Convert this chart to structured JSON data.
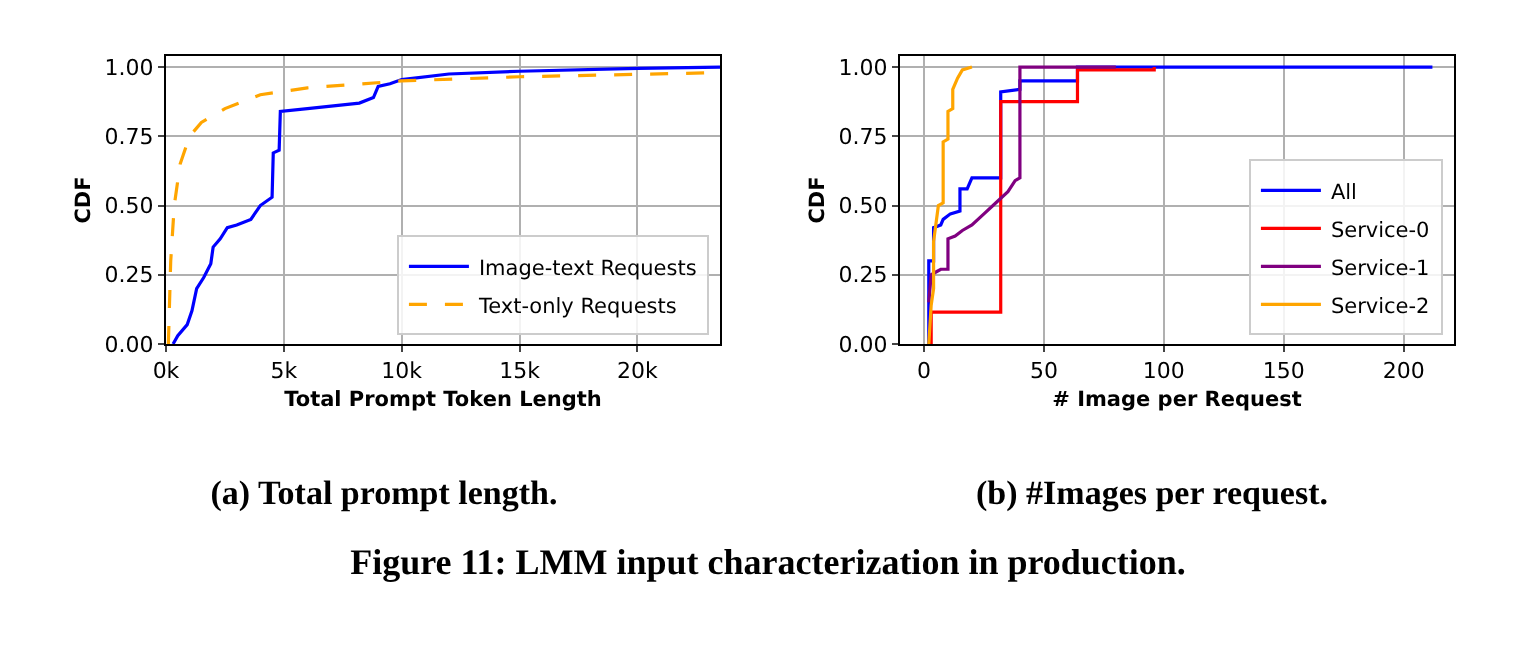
{
  "chart_data": [
    {
      "type": "line",
      "subtitle": "(a) Total prompt length.",
      "xlabel": "Total Prompt Token Length",
      "ylabel": "CDF",
      "annotations": [
        "Figure 11: LMM input characterization in production."
      ],
      "xlim": [
        0,
        23500
      ],
      "xticks": [
        {
          "value": 0,
          "label": "0k"
        },
        {
          "value": 5000,
          "label": "5k"
        },
        {
          "value": 10000,
          "label": "10k"
        },
        {
          "value": 15000,
          "label": "15k"
        },
        {
          "value": 20000,
          "label": "20k"
        }
      ],
      "ylim": [
        0,
        1.04
      ],
      "yticks": [
        {
          "value": 0,
          "label": "0.00"
        },
        {
          "value": 0.25,
          "label": "0.25"
        },
        {
          "value": 0.5,
          "label": "0.50"
        },
        {
          "value": 0.75,
          "label": "0.75"
        },
        {
          "value": 1,
          "label": "1.00"
        }
      ],
      "grid": true,
      "legend": "bottom right",
      "series": [
        {
          "name": "Image-text Requests",
          "color": "#0000ff",
          "line_style": "solid",
          "x": [
            300,
            500,
            900,
            1100,
            1300,
            1600,
            1900,
            2000,
            2300,
            2600,
            3000,
            3600,
            4000,
            4500,
            4550,
            4800,
            4850,
            6000,
            8200,
            8800,
            9000,
            9500,
            10000,
            12000,
            15000,
            20000,
            23500
          ],
          "values": [
            0,
            0.03,
            0.07,
            0.12,
            0.2,
            0.24,
            0.29,
            0.35,
            0.38,
            0.42,
            0.43,
            0.45,
            0.5,
            0.53,
            0.69,
            0.7,
            0.84,
            0.85,
            0.87,
            0.89,
            0.93,
            0.94,
            0.955,
            0.975,
            0.985,
            0.995,
            1.0
          ]
        },
        {
          "name": "Text-only Requests",
          "color": "#ffa500",
          "line_style": "dashed",
          "x": [
            100,
            200,
            350,
            600,
            1000,
            1500,
            2500,
            4000,
            6000,
            10000,
            15000,
            23500
          ],
          "values": [
            0,
            0.3,
            0.5,
            0.65,
            0.75,
            0.8,
            0.85,
            0.9,
            0.925,
            0.95,
            0.965,
            0.98
          ]
        }
      ]
    },
    {
      "type": "line",
      "subtitle": "(b) #Images per request.",
      "xlabel": "# Image per Request",
      "ylabel": "CDF",
      "xlim": [
        -10,
        221
      ],
      "xticks": [
        0,
        50,
        100,
        150,
        200
      ],
      "ylim": [
        0,
        1.04
      ],
      "yticks": [
        {
          "value": 0,
          "label": "0.00"
        },
        {
          "value": 0.25,
          "label": "0.25"
        },
        {
          "value": 0.5,
          "label": "0.50"
        },
        {
          "value": 0.75,
          "label": "0.75"
        },
        {
          "value": 1,
          "label": "1.00"
        }
      ],
      "grid": true,
      "legend": "bottom right",
      "series": [
        {
          "name": "All",
          "color": "#0000ff",
          "line_style": "solid",
          "x": [
            2,
            2,
            4,
            4,
            7,
            8,
            11,
            15,
            15,
            18,
            19,
            20,
            32,
            32,
            40,
            40,
            64,
            64,
            212
          ],
          "values": [
            0,
            0.3,
            0.3,
            0.42,
            0.43,
            0.45,
            0.47,
            0.48,
            0.56,
            0.56,
            0.58,
            0.6,
            0.6,
            0.91,
            0.92,
            0.95,
            0.95,
            1.0,
            1.0
          ]
        },
        {
          "name": "Service-0",
          "color": "#ff0000",
          "line_style": "solid",
          "x": [
            3,
            3,
            32,
            32,
            64,
            64,
            96,
            96
          ],
          "values": [
            0,
            0.115,
            0.115,
            0.875,
            0.875,
            0.99,
            0.99,
            1.0
          ]
        },
        {
          "name": "Service-1",
          "color": "#800080",
          "line_style": "solid",
          "x": [
            2,
            3,
            5,
            7,
            10,
            10,
            13,
            16,
            20,
            25,
            30,
            35,
            38,
            40,
            40,
            80
          ],
          "values": [
            0.15,
            0.25,
            0.26,
            0.27,
            0.27,
            0.38,
            0.39,
            0.41,
            0.43,
            0.47,
            0.51,
            0.55,
            0.59,
            0.6,
            1.0,
            1.0
          ]
        },
        {
          "name": "Service-2",
          "color": "#ffa500",
          "line_style": "solid",
          "x": [
            2,
            3,
            4,
            4,
            6,
            8,
            8,
            10,
            10,
            12,
            12,
            14,
            16,
            20
          ],
          "values": [
            0,
            0.14,
            0.2,
            0.37,
            0.5,
            0.51,
            0.73,
            0.74,
            0.84,
            0.85,
            0.92,
            0.96,
            0.99,
            1.0
          ]
        }
      ]
    }
  ]
}
